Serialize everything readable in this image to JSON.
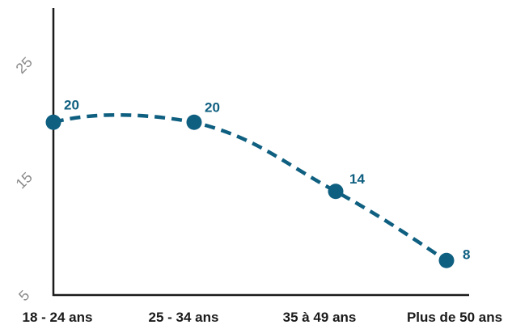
{
  "chart_data": {
    "type": "line",
    "categories": [
      "18 - 24 ans",
      "25 - 34 ans",
      "35 à 49 ans",
      "Plus de 50 ans"
    ],
    "series": [
      {
        "values": [
          20,
          20,
          14,
          8
        ],
        "color": "#0f5f80",
        "line_style": "dashed",
        "smooth": true
      }
    ],
    "data_labels": [
      "20",
      "20",
      "14",
      "8"
    ],
    "y_ticks": [
      "5",
      "15",
      "25"
    ],
    "ylim": [
      5,
      25
    ],
    "grid": false,
    "legend": "none",
    "axis_color": "#1a1a1a"
  }
}
